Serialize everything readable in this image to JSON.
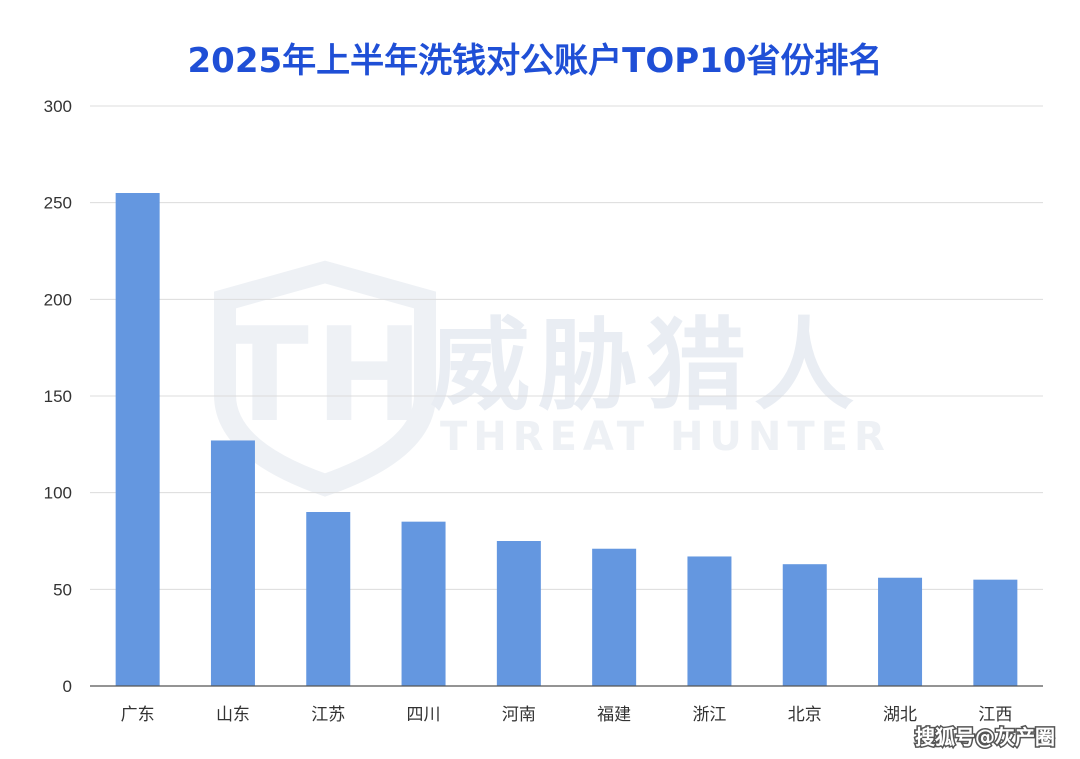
{
  "chart_data": {
    "type": "bar",
    "title": "2025年上半年洗钱对公账户TOP10省份排名",
    "xlabel": "",
    "ylabel": "",
    "categories": [
      "广东",
      "山东",
      "江苏",
      "四川",
      "河南",
      "福建",
      "浙江",
      "北京",
      "湖北",
      "江西"
    ],
    "values": [
      255,
      127,
      90,
      85,
      75,
      71,
      67,
      63,
      56,
      55
    ],
    "ylim": [
      0,
      300
    ],
    "yticks": [
      0,
      50,
      100,
      150,
      200,
      250,
      300
    ],
    "grid": true,
    "legend": "none",
    "bar_color": "#6497e0"
  },
  "watermark": {
    "text_cn": "威胁猎人",
    "text_en": "THREAT HUNTER",
    "logo_letters": "TH"
  },
  "credit": "搜狐号@灰产圈",
  "colors": {
    "title": "#1f4fd6",
    "grid": "#dcdcdc",
    "axis": "#555555"
  }
}
